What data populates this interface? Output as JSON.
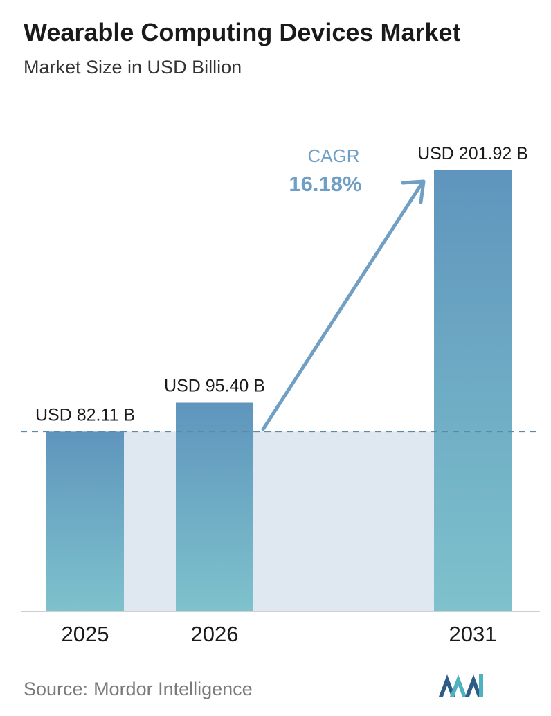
{
  "title": "Wearable Computing Devices Market",
  "subtitle": "Market Size in USD Billion",
  "chart_data": {
    "type": "bar",
    "categories": [
      "2025",
      "2026",
      "2031"
    ],
    "values": [
      82.11,
      95.4,
      201.92
    ],
    "data_labels": [
      "USD 82.11 B",
      "USD 95.40 B",
      "USD 201.92 B"
    ],
    "ylim": [
      0,
      201.92
    ],
    "grid": false,
    "annotation": {
      "label": "CAGR",
      "value": "16.18%"
    },
    "colors": {
      "bar_top": "#5f95bd",
      "bar_bottom": "#7ec2cc",
      "band": "#dfe8f1",
      "arrow": "#6f9fc4",
      "cagr_text": "#6f9fc4",
      "dashed_line": "#5a8aa8"
    }
  },
  "source": {
    "label": "Source:",
    "value": "Mordor Intelligence"
  },
  "logo_icon": "mordor-intelligence-logo-icon"
}
